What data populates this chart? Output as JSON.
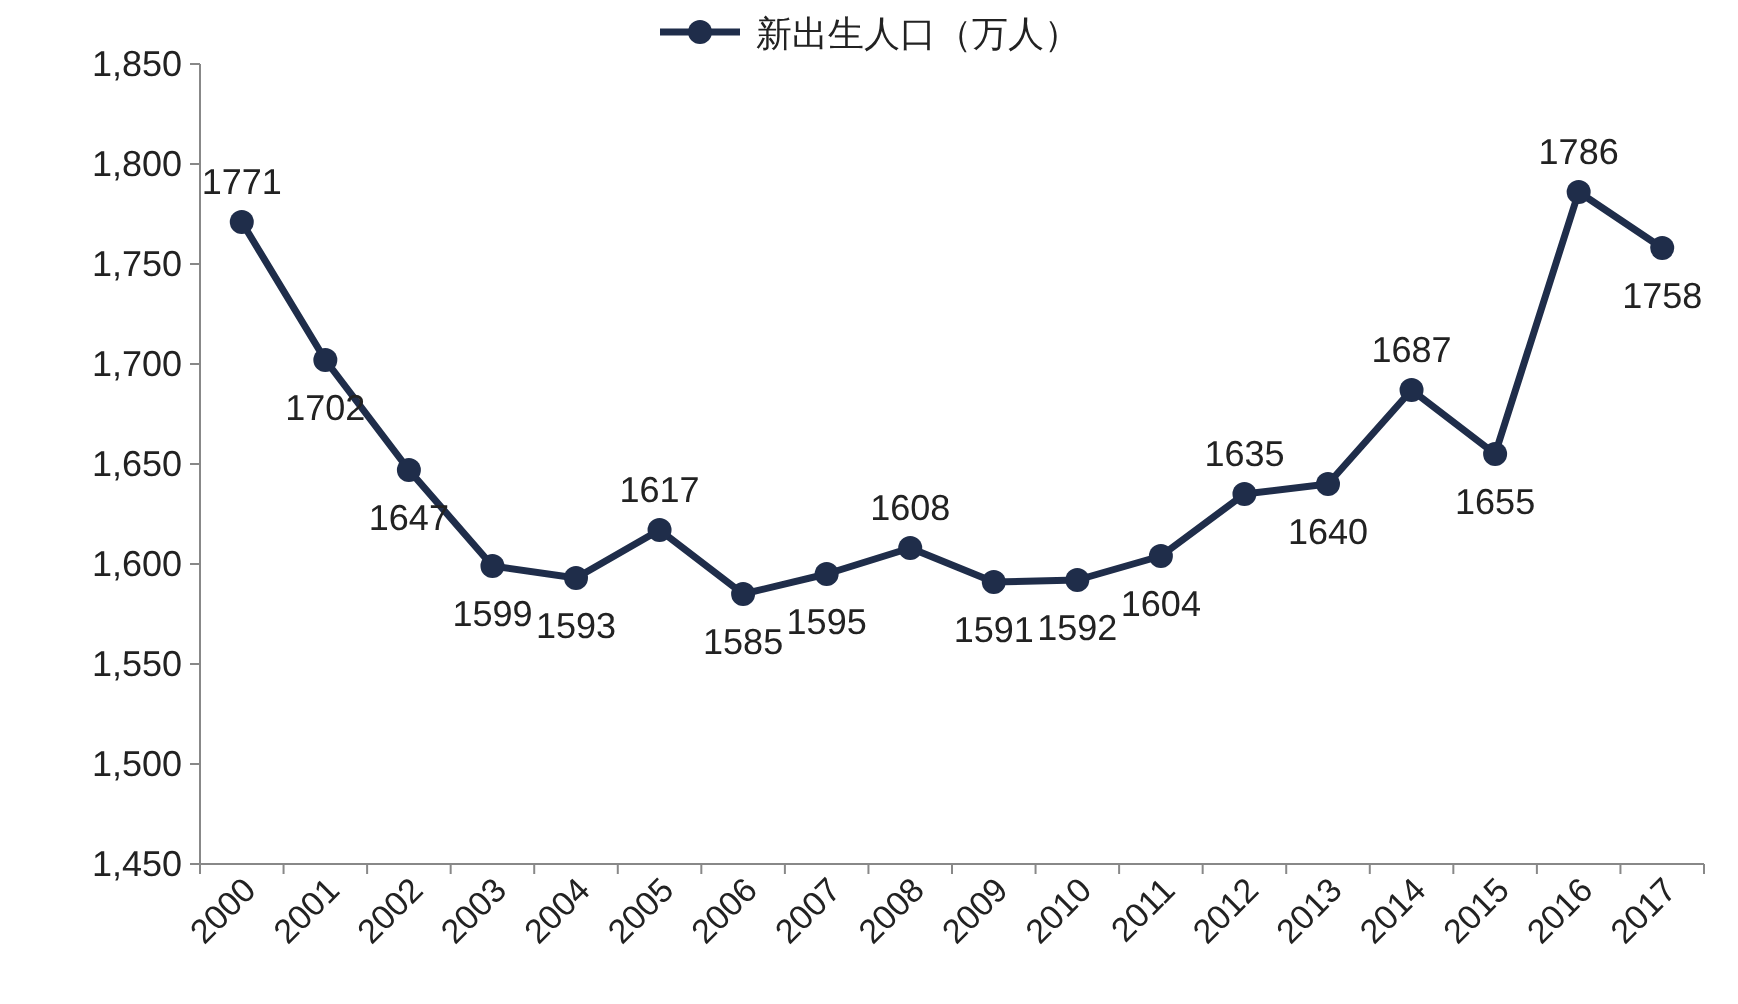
{
  "chart_data": {
    "type": "line",
    "categories": [
      "2000",
      "2001",
      "2002",
      "2003",
      "2004",
      "2005",
      "2006",
      "2007",
      "2008",
      "2009",
      "2010",
      "2011",
      "2012",
      "2013",
      "2014",
      "2015",
      "2016",
      "2017"
    ],
    "series": [
      {
        "name": "新出生人口（万人）",
        "color": "#1f2d4a",
        "values": [
          1771,
          1702,
          1647,
          1599,
          1593,
          1617,
          1585,
          1595,
          1608,
          1591,
          1592,
          1604,
          1635,
          1640,
          1687,
          1655,
          1786,
          1758
        ]
      }
    ],
    "ylim": [
      1450,
      1850
    ],
    "yticks": [
      {
        "value": 1450,
        "label": "1,450"
      },
      {
        "value": 1500,
        "label": "1,500"
      },
      {
        "value": 1550,
        "label": "1,550"
      },
      {
        "value": 1600,
        "label": "1,600"
      },
      {
        "value": 1650,
        "label": "1,650"
      },
      {
        "value": 1700,
        "label": "1,700"
      },
      {
        "value": 1750,
        "label": "1,750"
      },
      {
        "value": 1800,
        "label": "1,800"
      },
      {
        "value": 1850,
        "label": "1,850"
      }
    ],
    "data_labels": true,
    "legend": "top",
    "marker": "circle",
    "line_style": "solid",
    "grid": false
  }
}
